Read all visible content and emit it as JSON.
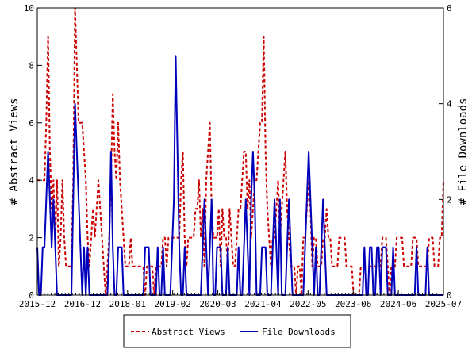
{
  "chart_data": {
    "type": "line",
    "x_tick_labels": [
      "2015-12",
      "2016-12",
      "2018-01",
      "2019-02",
      "2020-03",
      "2021-04",
      "2022-05",
      "2023-06",
      "2024-06",
      "2025-07"
    ],
    "left_axis": {
      "label": "# Abstract Views",
      "ylim": [
        0,
        10
      ],
      "ticks": [
        0,
        2,
        4,
        6,
        8,
        10
      ]
    },
    "right_axis": {
      "label": "# File Downloads",
      "ylim": [
        0,
        6
      ],
      "ticks": [
        0,
        2,
        4,
        6
      ]
    },
    "legend": {
      "placement": "bottom-center"
    },
    "grid": false,
    "series": [
      {
        "name": "Abstract Views",
        "axis": "left",
        "color": "#cc0000",
        "style": "dashed",
        "values": [
          4,
          4,
          4,
          4,
          4,
          6,
          9,
          5,
          3,
          4,
          2,
          4,
          1,
          2,
          4,
          2,
          1,
          1,
          1,
          1,
          4,
          10,
          8,
          6,
          6,
          6,
          5,
          4,
          2,
          1,
          2,
          3,
          2,
          3,
          4,
          3,
          2,
          1,
          0,
          1,
          2,
          4,
          7,
          5,
          4,
          6,
          4,
          3,
          2,
          1,
          1,
          1,
          2,
          1,
          1,
          1,
          1,
          1,
          1,
          1,
          0,
          1,
          1,
          1,
          1,
          0,
          1,
          1,
          1,
          1,
          2,
          2,
          1,
          2,
          2,
          2,
          2,
          2,
          2,
          2,
          4,
          5,
          2,
          1,
          2,
          2,
          2,
          2,
          3,
          3,
          4,
          2,
          3,
          1,
          4,
          5,
          6,
          3,
          2,
          2,
          2,
          3,
          1,
          3,
          2,
          2,
          1,
          3,
          2,
          1,
          1,
          2,
          3,
          3,
          4,
          5,
          5,
          3,
          4,
          2,
          3,
          4,
          4,
          5,
          6,
          6,
          9,
          5,
          3,
          2,
          1,
          2,
          2,
          3,
          4,
          2,
          3,
          4,
          5,
          3,
          2,
          1,
          1,
          1,
          0,
          1,
          1,
          0,
          2,
          2,
          3,
          4,
          3,
          1,
          2,
          2,
          1,
          1,
          1,
          2,
          2,
          3,
          2,
          2,
          1,
          1,
          1,
          1,
          2,
          2,
          2,
          2,
          1,
          1,
          1,
          1,
          0,
          0,
          0,
          0,
          1,
          1,
          1,
          1,
          1,
          1,
          1,
          1,
          1,
          1,
          1,
          1,
          2,
          2,
          2,
          1,
          0,
          1,
          1,
          1,
          2,
          2,
          2,
          2,
          1,
          1,
          1,
          1,
          1,
          2,
          2,
          2,
          1,
          1,
          1,
          1,
          1,
          1,
          2,
          2,
          2,
          1,
          1,
          1,
          2,
          2,
          4
        ]
      },
      {
        "name": "File Downloads",
        "axis": "right",
        "color": "#0000bb",
        "style": "solid",
        "values": [
          1,
          0,
          0,
          1,
          1,
          2,
          3,
          2,
          1,
          2,
          1,
          0,
          0,
          0,
          0,
          0,
          0,
          0,
          0,
          0,
          2,
          4,
          3,
          2,
          1,
          0,
          1,
          0,
          1,
          0,
          0,
          0,
          0,
          0,
          0,
          0,
          0,
          0,
          0,
          0,
          1,
          3,
          1,
          0,
          0,
          1,
          1,
          1,
          0,
          0,
          0,
          0,
          0,
          0,
          0,
          0,
          0,
          0,
          0,
          0,
          1,
          1,
          1,
          0,
          0,
          0,
          0,
          1,
          0,
          0,
          1,
          0,
          0,
          0,
          0,
          1,
          2,
          5,
          3,
          1,
          0,
          0,
          1,
          0,
          0,
          0,
          0,
          0,
          0,
          0,
          0,
          0,
          1,
          2,
          1,
          0,
          1,
          2,
          0,
          0,
          1,
          1,
          1,
          0,
          0,
          0,
          1,
          0,
          0,
          0,
          0,
          0,
          1,
          0,
          0,
          1,
          2,
          1,
          0,
          2,
          3,
          2,
          0,
          0,
          0,
          1,
          1,
          1,
          0,
          0,
          0,
          1,
          2,
          1,
          0,
          2,
          0,
          0,
          0,
          1,
          2,
          1,
          0,
          0,
          0,
          0,
          0,
          0,
          0,
          1,
          2,
          3,
          2,
          1,
          0,
          1,
          0,
          0,
          1,
          2,
          1,
          0,
          0,
          0,
          0,
          0,
          0,
          0,
          0,
          0,
          0,
          0,
          0,
          0,
          0,
          0,
          0,
          0,
          0,
          0,
          0,
          0,
          1,
          0,
          0,
          1,
          1,
          0,
          0,
          1,
          1,
          0,
          1,
          1,
          1,
          0,
          0,
          0,
          1,
          0,
          0,
          0,
          0,
          0,
          0,
          0,
          0,
          0,
          0,
          0,
          0,
          1,
          0,
          0,
          0,
          0,
          0,
          1,
          0,
          0,
          0,
          0,
          0,
          0,
          0,
          0,
          0
        ]
      }
    ]
  }
}
